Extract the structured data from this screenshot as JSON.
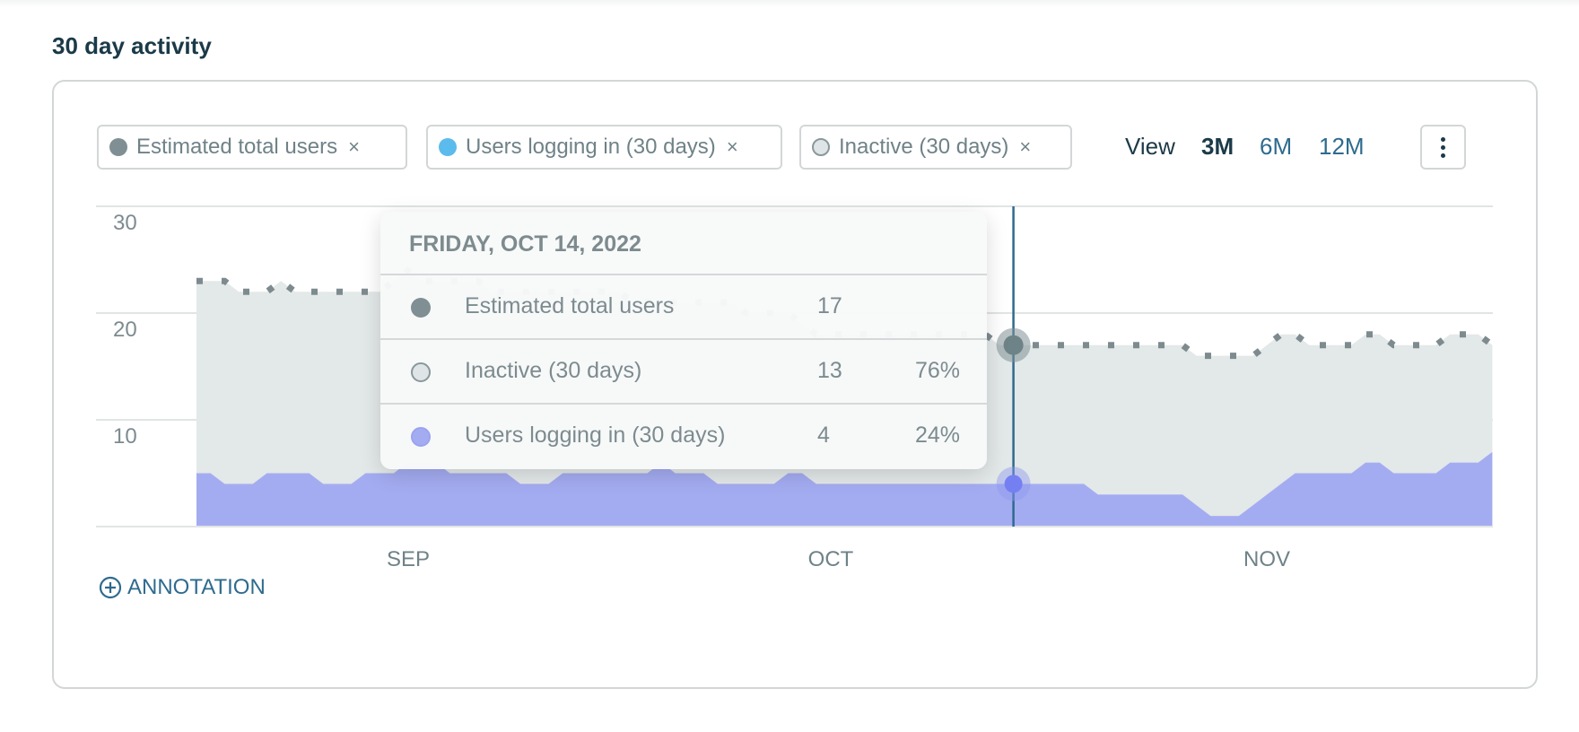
{
  "title": "30 day activity",
  "legend_chips": [
    {
      "label": "Estimated total users",
      "color": "#7f8f93",
      "close": "×"
    },
    {
      "label": "Users logging in (30 days)",
      "color": "#5bbbec",
      "close": "×"
    },
    {
      "label": "Inactive (30 days)",
      "color": "#dfe5e6",
      "close": "×"
    }
  ],
  "view": {
    "label": "View",
    "options": [
      "3M",
      "6M",
      "12M"
    ],
    "selected": "3M"
  },
  "more_icon": "vertical-ellipsis-icon",
  "annotation": {
    "icon": "plus-circle-icon",
    "label": "ANNOTATION"
  },
  "tooltip": {
    "date": "FRIDAY, OCT 14, 2022",
    "rows": [
      {
        "label": "Estimated total users",
        "value": "17",
        "percent": ""
      },
      {
        "label": "Inactive (30 days)",
        "value": "13",
        "percent": "76%"
      },
      {
        "label": "Users logging in (30 days)",
        "value": "4",
        "percent": "24%"
      }
    ]
  },
  "chart_data": {
    "type": "area",
    "x_start": "2022-08-17",
    "x_end": "2022-11-17",
    "x_step": "1 day",
    "x_tick_labels": [
      "SEP",
      "OCT",
      "NOV"
    ],
    "x_tick_dates": [
      "2022-09-01",
      "2022-10-01",
      "2022-11-01"
    ],
    "y_tick_labels": [
      "10",
      "20",
      "30"
    ],
    "ylim": [
      0,
      30
    ],
    "grid": true,
    "hover_date": "2022-10-14",
    "colors": {
      "total_line": "#7d8b8f",
      "inactive_area": "#e3e8e8",
      "logging_area": "#a4acf1",
      "hover_line": "#2e6b8e"
    },
    "series": [
      {
        "name": "Estimated total users",
        "style": "dotted-line",
        "values": [
          23,
          23,
          23,
          22,
          22,
          22,
          23,
          22,
          22,
          22,
          22,
          22,
          22,
          22,
          23,
          24,
          23,
          23,
          23,
          23,
          23,
          22,
          22,
          22,
          22,
          22,
          22,
          22,
          22,
          22,
          22,
          21,
          21,
          21,
          21,
          21,
          21,
          21,
          21,
          20,
          20,
          20,
          20,
          19,
          18,
          18,
          18,
          18,
          18,
          18,
          18,
          18,
          18,
          18,
          18,
          18,
          18,
          17,
          17,
          17,
          17,
          17,
          17,
          17,
          17,
          17,
          17,
          17,
          17,
          17,
          17,
          16,
          16,
          16,
          16,
          16,
          17,
          18,
          18,
          17,
          17,
          17,
          17,
          18,
          18,
          17,
          17,
          17,
          17,
          18,
          18,
          18,
          17
        ]
      },
      {
        "name": "Users logging in (30 days)",
        "style": "area",
        "values": [
          5,
          5,
          4,
          4,
          4,
          5,
          5,
          5,
          5,
          4,
          4,
          4,
          5,
          5,
          5,
          6,
          6,
          6,
          5,
          5,
          5,
          5,
          5,
          4,
          4,
          4,
          5,
          5,
          5,
          5,
          5,
          5,
          5,
          6,
          5,
          5,
          5,
          4,
          4,
          4,
          4,
          4,
          5,
          5,
          4,
          4,
          4,
          4,
          4,
          4,
          4,
          4,
          4,
          4,
          4,
          4,
          4,
          4,
          4,
          4,
          4,
          4,
          4,
          4,
          3,
          3,
          3,
          3,
          3,
          3,
          3,
          2,
          1,
          1,
          1,
          2,
          3,
          4,
          5,
          5,
          5,
          5,
          5,
          6,
          6,
          5,
          5,
          5,
          5,
          6,
          6,
          6,
          7
        ]
      },
      {
        "name": "Inactive (30 days)",
        "style": "stacked-area",
        "values": [
          18,
          18,
          19,
          18,
          18,
          17,
          18,
          17,
          17,
          18,
          18,
          18,
          17,
          17,
          18,
          18,
          17,
          17,
          18,
          18,
          18,
          17,
          17,
          18,
          18,
          18,
          17,
          17,
          17,
          17,
          17,
          16,
          16,
          15,
          16,
          16,
          16,
          17,
          17,
          16,
          16,
          16,
          15,
          14,
          14,
          14,
          14,
          14,
          14,
          14,
          14,
          14,
          14,
          14,
          14,
          14,
          14,
          13,
          13,
          13,
          13,
          13,
          13,
          13,
          14,
          14,
          14,
          14,
          14,
          14,
          14,
          14,
          15,
          15,
          15,
          14,
          14,
          14,
          13,
          12,
          12,
          12,
          12,
          12,
          12,
          12,
          12,
          12,
          12,
          12,
          12,
          12,
          10
        ]
      }
    ]
  }
}
